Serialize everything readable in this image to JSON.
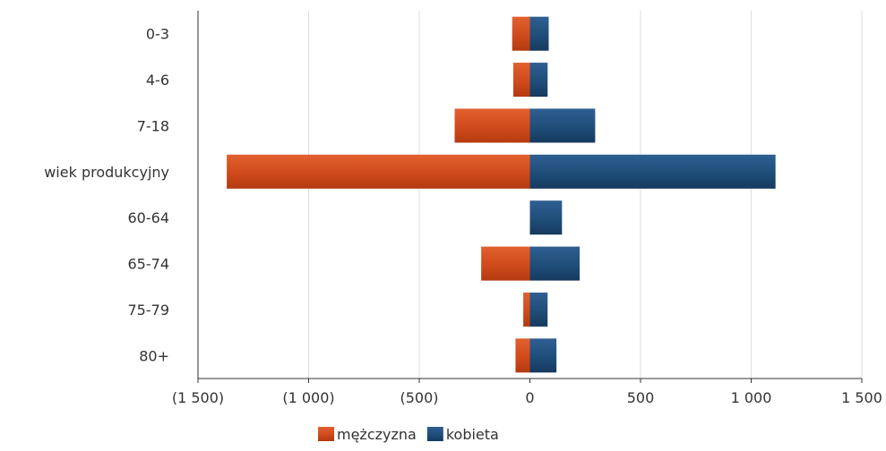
{
  "chart_data": {
    "type": "bar",
    "orientation": "horizontal",
    "stacked": "diverging",
    "categories": [
      "0-3",
      "4-6",
      "7-18",
      "wiek produkcyjny",
      "60-64",
      "65-74",
      "75-79",
      "80+"
    ],
    "series": [
      {
        "name": "mężczyzna",
        "values": [
          -80,
          -75,
          -340,
          -1370,
          0,
          -220,
          -30,
          -65
        ],
        "color": "#cf4a1c"
      },
      {
        "name": "kobieta",
        "values": [
          85,
          80,
          295,
          1110,
          145,
          225,
          80,
          120
        ],
        "color": "#1f4e79"
      }
    ],
    "xlim": [
      -1500,
      1500
    ],
    "x_ticks": [
      -1500,
      -1000,
      -500,
      0,
      500,
      1000,
      1500
    ],
    "x_tick_labels": [
      "(1 500)",
      "(1 000)",
      "(500)",
      "0",
      "500",
      "1 000",
      "1 500"
    ],
    "grid": "vertical",
    "legend_position": "bottom"
  }
}
